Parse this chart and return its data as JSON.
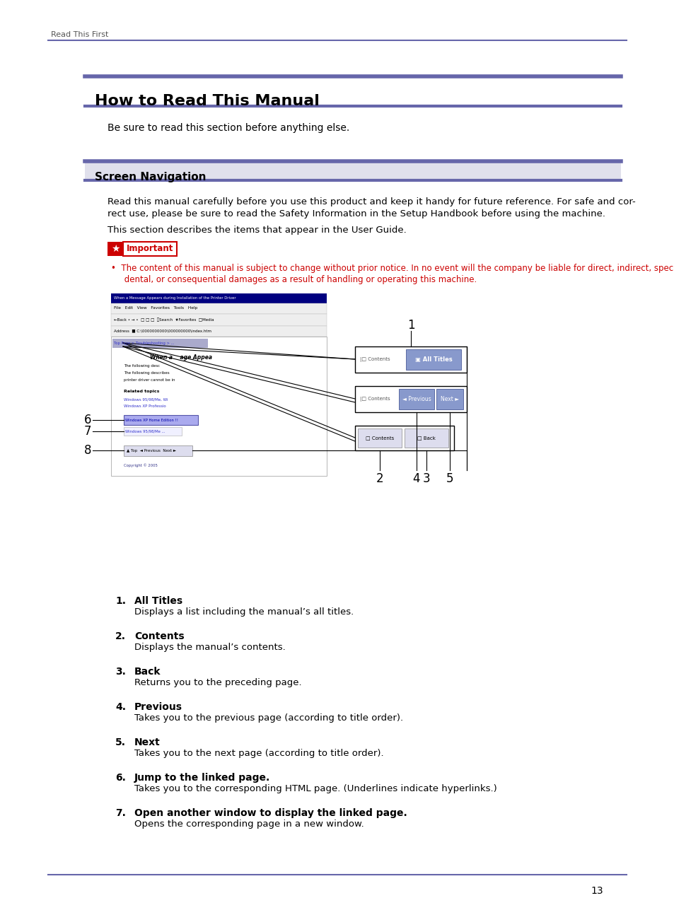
{
  "bg_color": "#ffffff",
  "header_text": "Read This First",
  "bar_color": "#6666aa",
  "title": "How to Read This Manual",
  "section_title": "Screen Navigation",
  "body_text1": "Be sure to read this section before anything else.",
  "body_para1_l1": "Read this manual carefully before you use this product and keep it handy for future reference. For safe and cor-",
  "body_para1_l2": "rect use, please be sure to read the Safety Information in the Setup Handbook before using the machine.",
  "body_para2": "This section describes the items that appear in the User Guide.",
  "bullet_l1": "•  The content of this manual is subject to change without prior notice. In no event will the company be liable for direct, indirect, special, inci-",
  "bullet_l2": "     dental, or consequential damages as a result of handling or operating this machine.",
  "bullet_color": "#cc0000",
  "list_items": [
    {
      "num": "1.",
      "bold": "All Titles",
      "desc": "Displays a list including the manual’s all titles."
    },
    {
      "num": "2.",
      "bold": "Contents",
      "desc": "Displays the manual’s contents."
    },
    {
      "num": "3.",
      "bold": "Back",
      "desc": "Returns you to the preceding page."
    },
    {
      "num": "4.",
      "bold": "Previous",
      "desc": "Takes you to the previous page (according to title order)."
    },
    {
      "num": "5.",
      "bold": "Next",
      "desc": "Takes you to the next page (according to title order)."
    },
    {
      "num": "6.",
      "bold": "Jump to the linked page.",
      "desc": "Takes you to the corresponding HTML page. (Underlines indicate hyperlinks.)"
    },
    {
      "num": "7.",
      "bold": "Open another window to display the linked page.",
      "desc": "Opens the corresponding page in a new window."
    }
  ],
  "page_number": "13"
}
